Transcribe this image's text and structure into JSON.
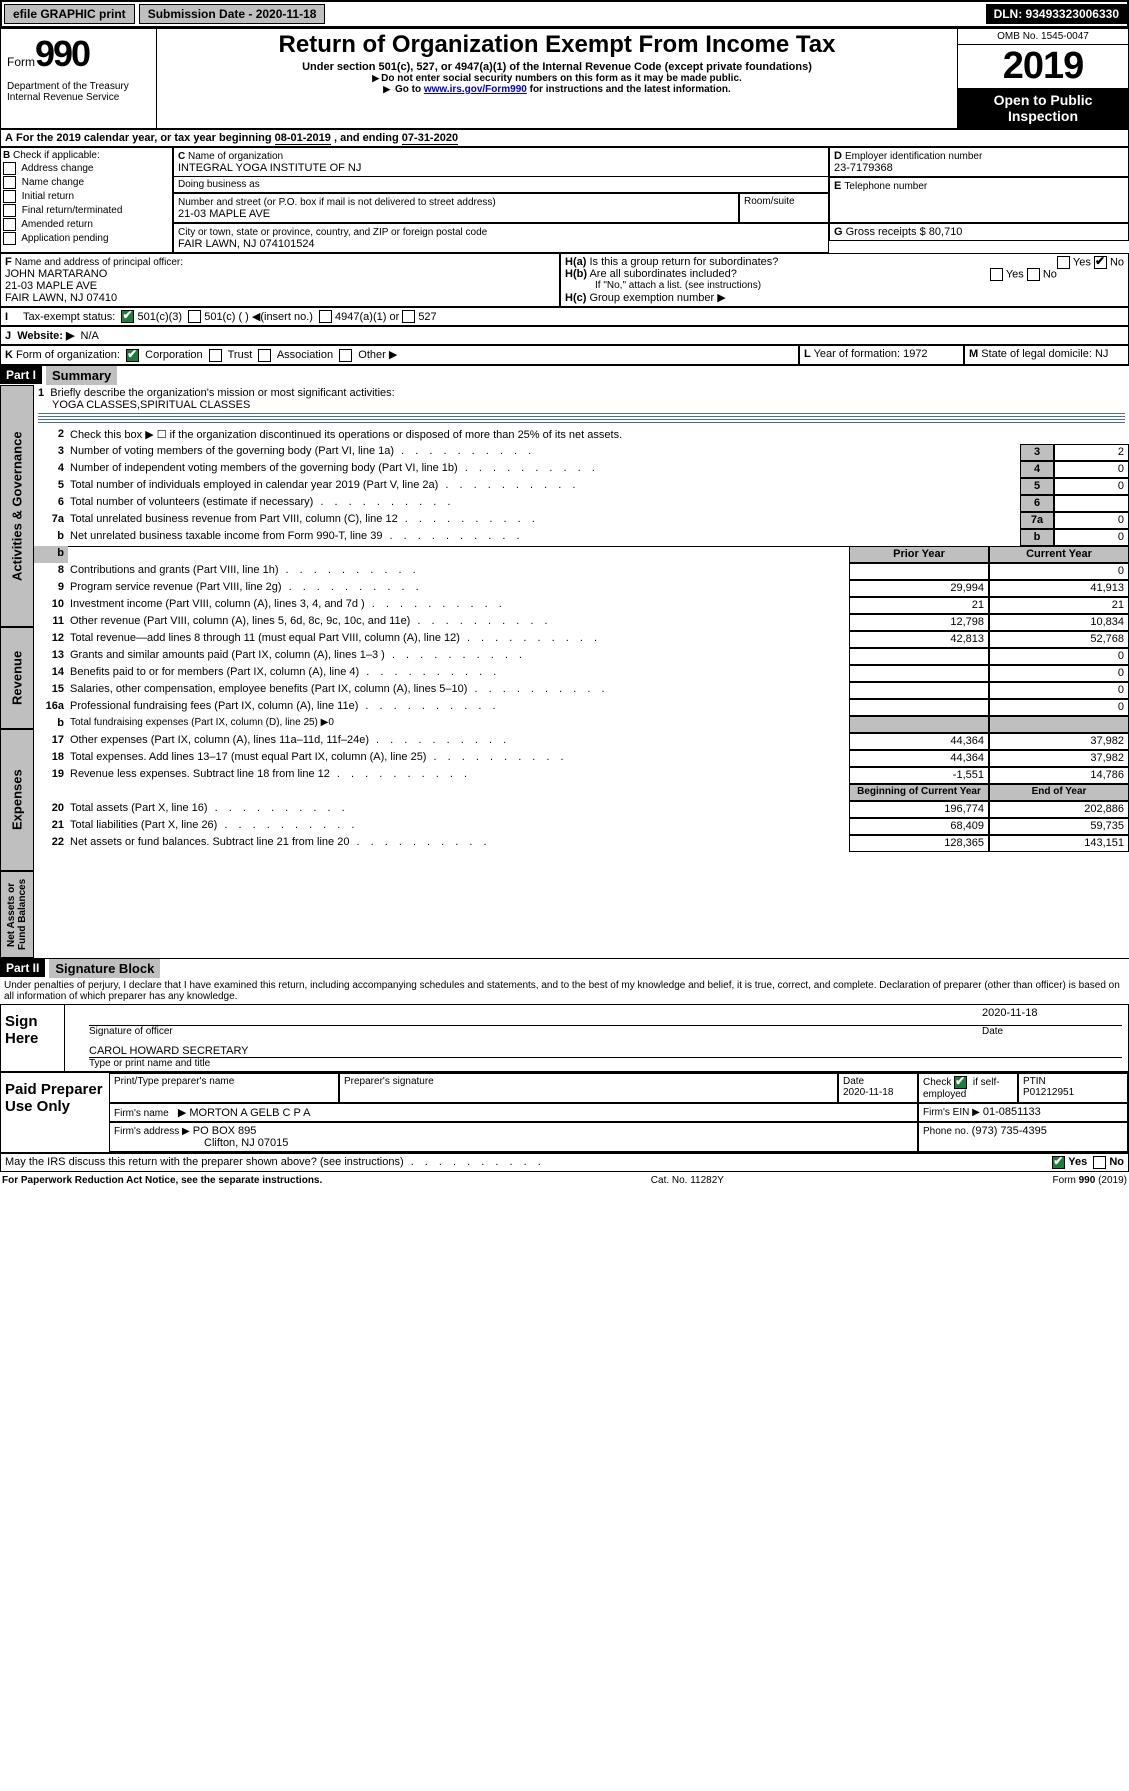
{
  "hdrbar": {
    "efile": "efile GRAPHIC print",
    "subdate_lbl": "Submission Date - 2020-11-18",
    "dln": "DLN: 93493323006330"
  },
  "title": {
    "form_word": "Form",
    "form_no": "990",
    "main": "Return of Organization Exempt From Income Tax",
    "sub1": "Under section 501(c), 527, or 4947(a)(1) of the Internal Revenue Code (except private foundations)",
    "sub2": "Do not enter social security numbers on this form as it may be made public.",
    "sub3a": "Go to ",
    "sub3_link": "www.irs.gov/Form990",
    "sub3b": " for instructions and the latest information.",
    "dept1": "Department of the Treasury",
    "dept2": "Internal Revenue Service",
    "omb": "OMB No. 1545-0047",
    "year": "2019",
    "otp1": "Open to Public",
    "otp2": "Inspection"
  },
  "lineA": {
    "text_a": "For the 2019 calendar year, or tax year beginning ",
    "begin": "08-01-2019",
    "text_b": " , and ending ",
    "end": "07-31-2020"
  },
  "B": {
    "hdr": "Check if applicable:",
    "items": [
      "Address change",
      "Name change",
      "Initial return",
      "Final return/terminated",
      "Amended return",
      "Application pending"
    ]
  },
  "C": {
    "lbl": "Name of organization",
    "name": "INTEGRAL YOGA INSTITUTE OF NJ",
    "dba_lbl": "Doing business as",
    "addr_lbl": "Number and street (or P.O. box if mail is not delivered to street address)",
    "room_lbl": "Room/suite",
    "addr": "21-03 MAPLE AVE",
    "city_lbl": "City or town, state or province, country, and ZIP or foreign postal code",
    "city": "FAIR LAWN, NJ  074101524"
  },
  "D": {
    "lbl": "Employer identification number",
    "val": "23-7179368"
  },
  "E": {
    "lbl": "Telephone number"
  },
  "G": {
    "lbl": "Gross receipts $",
    "val": "80,710"
  },
  "F": {
    "lbl": "Name and address of principal officer:",
    "name": "JOHN MARTARANO",
    "addr1": "21-03 MAPLE AVE",
    "addr2": "FAIR LAWN, NJ  07410"
  },
  "H": {
    "a": "Is this a group return for subordinates?",
    "b": "Are all subordinates included?",
    "b_note": "If \"No,\" attach a list. (see instructions)",
    "c": "Group exemption number ▶",
    "yes": "Yes",
    "no": "No"
  },
  "I": {
    "lbl": "Tax-exempt status:",
    "c501c3": "501(c)(3)",
    "c501c": "501(c) (   ) ◀(insert no.)",
    "c4947": "4947(a)(1) or",
    "c527": "527"
  },
  "J": {
    "lbl": "Website: ▶",
    "val": "N/A"
  },
  "K": {
    "lbl": "Form of organization:",
    "corp": "Corporation",
    "trust": "Trust",
    "assoc": "Association",
    "other": "Other ▶"
  },
  "L": {
    "lbl": "Year of formation:",
    "val": "1972"
  },
  "M": {
    "lbl": "State of legal domicile:",
    "val": "NJ"
  },
  "partI": {
    "hdr": "Part I",
    "title": "Summary"
  },
  "p1": {
    "l1_lbl": "Briefly describe the organization's mission or most significant activities:",
    "l1_val": "YOGA CLASSES,SPIRITUAL CLASSES",
    "l2": "Check this box ▶ ☐  if the organization discontinued its operations or disposed of more than 25% of its net assets.",
    "l3": "Number of voting members of the governing body (Part VI, line 1a)",
    "l4": "Number of independent voting members of the governing body (Part VI, line 1b)",
    "l5": "Total number of individuals employed in calendar year 2019 (Part V, line 2a)",
    "l6": "Total number of volunteers (estimate if necessary)",
    "l7a": "Total unrelated business revenue from Part VIII, column (C), line 12",
    "l7b": "Net unrelated business taxable income from Form 990-T, line 39",
    "v3": "2",
    "v4": "0",
    "v5": "0",
    "v6": "",
    "v7a": "0",
    "v7b": "0",
    "prior": "Prior Year",
    "current": "Current Year",
    "rows": [
      {
        "n": "8",
        "t": "Contributions and grants (Part VIII, line 1h)",
        "p": "",
        "c": "0"
      },
      {
        "n": "9",
        "t": "Program service revenue (Part VIII, line 2g)",
        "p": "29,994",
        "c": "41,913"
      },
      {
        "n": "10",
        "t": "Investment income (Part VIII, column (A), lines 3, 4, and 7d )",
        "p": "21",
        "c": "21"
      },
      {
        "n": "11",
        "t": "Other revenue (Part VIII, column (A), lines 5, 6d, 8c, 9c, 10c, and 11e)",
        "p": "12,798",
        "c": "10,834"
      },
      {
        "n": "12",
        "t": "Total revenue—add lines 8 through 11 (must equal Part VIII, column (A), line 12)",
        "p": "42,813",
        "c": "52,768"
      },
      {
        "n": "13",
        "t": "Grants and similar amounts paid (Part IX, column (A), lines 1–3 )",
        "p": "",
        "c": "0"
      },
      {
        "n": "14",
        "t": "Benefits paid to or for members (Part IX, column (A), line 4)",
        "p": "",
        "c": "0"
      },
      {
        "n": "15",
        "t": "Salaries, other compensation, employee benefits (Part IX, column (A), lines 5–10)",
        "p": "",
        "c": "0"
      },
      {
        "n": "16a",
        "t": "Professional fundraising fees (Part IX, column (A), line 11e)",
        "p": "",
        "c": "0"
      },
      {
        "n": "b",
        "t": "Total fundraising expenses (Part IX, column (D), line 25) ▶0",
        "p": "__GREY__",
        "c": "__GREY__"
      },
      {
        "n": "17",
        "t": "Other expenses (Part IX, column (A), lines 11a–11d, 11f–24e)",
        "p": "44,364",
        "c": "37,982"
      },
      {
        "n": "18",
        "t": "Total expenses. Add lines 13–17 (must equal Part IX, column (A), line 25)",
        "p": "44,364",
        "c": "37,982"
      },
      {
        "n": "19",
        "t": "Revenue less expenses. Subtract line 18 from line 12",
        "p": "-1,551",
        "c": "14,786"
      }
    ],
    "beg": "Beginning of Current Year",
    "end": "End of Year",
    "netrows": [
      {
        "n": "20",
        "t": "Total assets (Part X, line 16)",
        "p": "196,774",
        "c": "202,886"
      },
      {
        "n": "21",
        "t": "Total liabilities (Part X, line 26)",
        "p": "68,409",
        "c": "59,735"
      },
      {
        "n": "22",
        "t": "Net assets or fund balances. Subtract line 21 from line 20",
        "p": "128,365",
        "c": "143,151"
      }
    ],
    "sidebars": [
      "Activities & Governance",
      "Revenue",
      "Expenses",
      "Net Assets or Fund Balances"
    ]
  },
  "partII": {
    "hdr": "Part II",
    "title": "Signature Block"
  },
  "perjury": "Under penalties of perjury, I declare that I have examined this return, including accompanying schedules and statements, and to the best of my knowledge and belief, it is true, correct, and complete. Declaration of preparer (other than officer) is based on all information of which preparer has any knowledge.",
  "sign": {
    "here": "Sign Here",
    "sig_lbl": "Signature of officer",
    "date_lbl": "Date",
    "date": "2020-11-18",
    "name": "CAROL HOWARD  SECRETARY",
    "name_lbl": "Type or print name and title"
  },
  "prep": {
    "lbl": "Paid Preparer Use Only",
    "pname_lbl": "Print/Type preparer's name",
    "psig_lbl": "Preparer's signature",
    "pdate_lbl": "Date",
    "pdate": "2020-11-18",
    "chk_lbl": "Check ☑ if self-employed",
    "ptin_lbl": "PTIN",
    "ptin": "P01212951",
    "firm_lbl": "Firm's name",
    "firm": "MORTON A GELB C P A",
    "ein_lbl": "Firm's EIN ▶",
    "ein": "01-0851133",
    "addr_lbl": "Firm's address ▶",
    "addr1": "PO BOX 895",
    "addr2": "Clifton, NJ  07015",
    "phone_lbl": "Phone no.",
    "phone": "(973) 735-4395"
  },
  "discuss": "May the IRS discuss this return with the preparer shown above? (see instructions)",
  "footer": {
    "pra": "For Paperwork Reduction Act Notice, see the separate instructions.",
    "cat": "Cat. No. 11282Y",
    "form": "Form 990 (2019)"
  },
  "colors": {
    "accent": "#0000cc",
    "part_bg": "#000000",
    "grey": "#bfbfbf",
    "rule": "#4a6ea9",
    "green": "#1b7e3c"
  }
}
